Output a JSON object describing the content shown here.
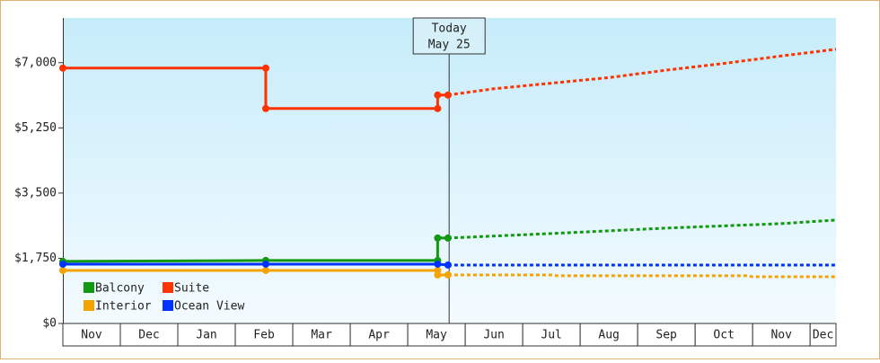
{
  "chart_data": {
    "type": "step-line",
    "ylim": [
      0,
      8200
    ],
    "yticks": [
      {
        "value": 0,
        "label": "$0"
      },
      {
        "value": 1750,
        "label": "$1,750"
      },
      {
        "value": 3500,
        "label": "$3,500"
      },
      {
        "value": 5250,
        "label": "$5,250"
      },
      {
        "value": 7000,
        "label": "$7,000"
      }
    ],
    "xlim": [
      0,
      13.45
    ],
    "xticks": [
      {
        "value": 0,
        "label": "Nov"
      },
      {
        "value": 1,
        "label": "Dec"
      },
      {
        "value": 2,
        "label": "Jan"
      },
      {
        "value": 3,
        "label": "Feb"
      },
      {
        "value": 4,
        "label": "Mar"
      },
      {
        "value": 5,
        "label": "Apr"
      },
      {
        "value": 6,
        "label": "May"
      },
      {
        "value": 7,
        "label": "Jun"
      },
      {
        "value": 8,
        "label": "Jul"
      },
      {
        "value": 9,
        "label": "Aug"
      },
      {
        "value": 10,
        "label": "Sep"
      },
      {
        "value": 11,
        "label": "Oct"
      },
      {
        "value": 12,
        "label": "Nov"
      },
      {
        "value": 13,
        "label": "Dec"
      }
    ],
    "annotation": {
      "x": 6.72,
      "lines": [
        "Today",
        "May 25"
      ]
    },
    "series": [
      {
        "name": "Balcony",
        "color": "#119911",
        "x": [
          0,
          3.53,
          6.52,
          6.52,
          6.7
        ],
        "values": [
          1666,
          1690,
          1690,
          2293,
          2293
        ],
        "forecast_x": [
          6.7,
          8.5,
          10.5,
          12.5,
          13.45
        ],
        "forecast_values": [
          2293,
          2414,
          2560,
          2680,
          2776
        ]
      },
      {
        "name": "Suite",
        "color": "#ff3300",
        "x": [
          0,
          3.53,
          3.53,
          6.52,
          6.52,
          6.7
        ],
        "values": [
          6855,
          6855,
          5769,
          5769,
          6131,
          6131
        ],
        "forecast_x": [
          6.7,
          7.5,
          8.5,
          9.5,
          10.5,
          11.5,
          12.5,
          13.45
        ],
        "forecast_values": [
          6131,
          6300,
          6450,
          6600,
          6800,
          6980,
          7180,
          7362
        ]
      },
      {
        "name": "Interior",
        "color": "#f5a300",
        "x": [
          0,
          3.53,
          6.52,
          6.52,
          6.7
        ],
        "values": [
          1424,
          1424,
          1424,
          1303,
          1303
        ],
        "forecast_x": [
          6.7,
          8.5,
          8.6,
          11.9,
          12.0,
          13.45
        ],
        "forecast_values": [
          1303,
          1303,
          1280,
          1280,
          1255,
          1255
        ]
      },
      {
        "name": "Ocean View",
        "color": "#0033ff",
        "x": [
          0,
          3.53,
          6.52,
          6.7
        ],
        "values": [
          1593,
          1593,
          1593,
          1569
        ],
        "forecast_x": [
          6.7,
          13.45
        ],
        "forecast_values": [
          1569,
          1569
        ]
      }
    ]
  }
}
